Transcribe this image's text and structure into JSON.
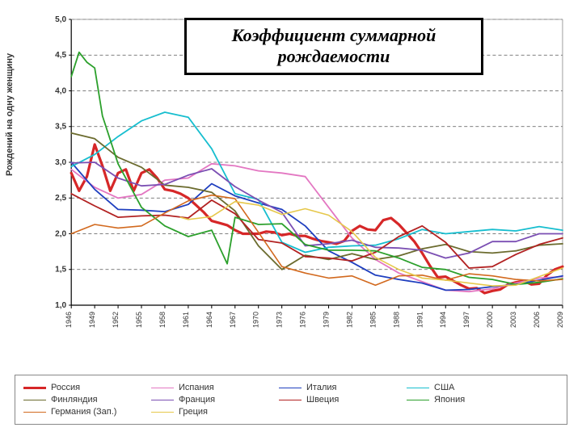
{
  "title": {
    "text": "Коэффициент суммарной рождаемости",
    "fontsize": 22
  },
  "y_axis": {
    "label": "Рождений на одну женщину",
    "min": 1.0,
    "max": 5.0,
    "ticks": [
      "1,0",
      "1,5",
      "2,0",
      "2,5",
      "3,0",
      "3,5",
      "4,0",
      "4,5",
      "5,0"
    ],
    "tick_values": [
      1.0,
      1.5,
      2.0,
      2.5,
      3.0,
      3.5,
      4.0,
      4.5,
      5.0
    ]
  },
  "x_axis": {
    "min": 1946,
    "max": 2009,
    "ticks": [
      1946,
      1949,
      1952,
      1955,
      1958,
      1961,
      1964,
      1967,
      1970,
      1973,
      1976,
      1979,
      1982,
      1985,
      1988,
      1991,
      1994,
      1997,
      2000,
      2003,
      2006,
      2009
    ]
  },
  "grid_color": "#555555",
  "background_color": "#ffffff",
  "axis_color": "#000000",
  "series": [
    {
      "name": "Россия",
      "label": "Россия",
      "color": "#d62728",
      "width": 3.2,
      "years": [
        1946,
        1947,
        1948,
        1949,
        1950,
        1951,
        1952,
        1953,
        1954,
        1955,
        1956,
        1957,
        1958,
        1959,
        1960,
        1961,
        1962,
        1963,
        1964,
        1965,
        1966,
        1967,
        1968,
        1969,
        1970,
        1971,
        1972,
        1973,
        1974,
        1975,
        1976,
        1977,
        1978,
        1979,
        1980,
        1981,
        1982,
        1983,
        1984,
        1985,
        1986,
        1987,
        1988,
        1989,
        1990,
        1991,
        1992,
        1993,
        1994,
        1995,
        1996,
        1997,
        1998,
        1999,
        2000,
        2001,
        2002,
        2003,
        2004,
        2005,
        2006,
        2007,
        2008,
        2009
      ],
      "values": [
        2.85,
        2.6,
        2.8,
        3.25,
        2.95,
        2.6,
        2.85,
        2.9,
        2.6,
        2.85,
        2.9,
        2.78,
        2.62,
        2.6,
        2.56,
        2.5,
        2.4,
        2.3,
        2.18,
        2.15,
        2.12,
        2.05,
        2.0,
        2.0,
        2.0,
        2.03,
        2.02,
        1.98,
        2.0,
        1.97,
        1.97,
        1.93,
        1.9,
        1.88,
        1.86,
        1.9,
        2.04,
        2.11,
        2.06,
        2.05,
        2.19,
        2.22,
        2.13,
        2.01,
        1.89,
        1.73,
        1.55,
        1.39,
        1.4,
        1.34,
        1.28,
        1.23,
        1.24,
        1.17,
        1.2,
        1.22,
        1.29,
        1.32,
        1.34,
        1.29,
        1.3,
        1.42,
        1.5,
        1.54
      ]
    },
    {
      "name": "Испания",
      "label": "Испания",
      "color": "#e377c2",
      "width": 1.8,
      "years": [
        1946,
        1949,
        1952,
        1955,
        1958,
        1961,
        1964,
        1967,
        1970,
        1973,
        1976,
        1979,
        1982,
        1985,
        1988,
        1991,
        1994,
        1997,
        2000,
        2003,
        2006,
        2009
      ],
      "values": [
        2.9,
        2.65,
        2.5,
        2.55,
        2.75,
        2.78,
        2.98,
        2.95,
        2.88,
        2.85,
        2.8,
        2.37,
        1.94,
        1.64,
        1.45,
        1.33,
        1.21,
        1.19,
        1.23,
        1.31,
        1.38,
        1.4
      ]
    },
    {
      "name": "Италия",
      "label": "Италия",
      "color": "#1f3fbf",
      "width": 1.8,
      "years": [
        1946,
        1949,
        1952,
        1955,
        1958,
        1961,
        1964,
        1967,
        1970,
        1973,
        1976,
        1979,
        1982,
        1985,
        1988,
        1991,
        1994,
        1997,
        2000,
        2003,
        2006,
        2009
      ],
      "values": [
        3.0,
        2.62,
        2.34,
        2.33,
        2.31,
        2.41,
        2.7,
        2.53,
        2.43,
        2.34,
        2.11,
        1.76,
        1.6,
        1.42,
        1.36,
        1.31,
        1.21,
        1.22,
        1.26,
        1.29,
        1.35,
        1.41
      ]
    },
    {
      "name": "США",
      "label": "США",
      "color": "#17becf",
      "width": 1.8,
      "years": [
        1946,
        1949,
        1952,
        1955,
        1958,
        1961,
        1964,
        1967,
        1970,
        1973,
        1976,
        1979,
        1982,
        1985,
        1988,
        1991,
        1994,
        1997,
        2000,
        2003,
        2006,
        2009
      ],
      "values": [
        2.94,
        3.11,
        3.36,
        3.58,
        3.7,
        3.63,
        3.19,
        2.56,
        2.48,
        1.88,
        1.74,
        1.81,
        1.83,
        1.84,
        1.93,
        2.06,
        2.0,
        2.03,
        2.06,
        2.04,
        2.1,
        2.05
      ]
    },
    {
      "name": "Финляндия",
      "label": "Финляндия",
      "color": "#6b6b2e",
      "width": 1.8,
      "years": [
        1946,
        1949,
        1952,
        1955,
        1958,
        1961,
        1964,
        1967,
        1970,
        1973,
        1976,
        1979,
        1982,
        1985,
        1988,
        1991,
        1994,
        1997,
        2000,
        2003,
        2006,
        2009
      ],
      "values": [
        3.41,
        3.33,
        3.07,
        2.93,
        2.68,
        2.65,
        2.58,
        2.32,
        1.83,
        1.5,
        1.7,
        1.64,
        1.72,
        1.64,
        1.69,
        1.79,
        1.85,
        1.75,
        1.73,
        1.76,
        1.84,
        1.86
      ]
    },
    {
      "name": "Франция",
      "label": "Франция",
      "color": "#7b4fb3",
      "width": 1.8,
      "years": [
        1946,
        1949,
        1952,
        1955,
        1958,
        1961,
        1964,
        1967,
        1970,
        1973,
        1976,
        1979,
        1982,
        1985,
        1988,
        1991,
        1994,
        1997,
        2000,
        2003,
        2006,
        2009
      ],
      "values": [
        2.99,
        3.0,
        2.78,
        2.67,
        2.69,
        2.82,
        2.91,
        2.66,
        2.47,
        2.3,
        1.83,
        1.86,
        1.91,
        1.81,
        1.8,
        1.77,
        1.66,
        1.73,
        1.89,
        1.89,
        2.0,
        2.0
      ]
    },
    {
      "name": "Швеция",
      "label": "Швеция",
      "color": "#b22222",
      "width": 1.8,
      "years": [
        1946,
        1949,
        1952,
        1955,
        1958,
        1961,
        1964,
        1967,
        1970,
        1973,
        1976,
        1979,
        1982,
        1985,
        1988,
        1991,
        1994,
        1997,
        2000,
        2003,
        2006,
        2009
      ],
      "values": [
        2.56,
        2.39,
        2.23,
        2.25,
        2.26,
        2.22,
        2.47,
        2.28,
        1.92,
        1.87,
        1.68,
        1.66,
        1.62,
        1.74,
        1.96,
        2.11,
        1.88,
        1.52,
        1.54,
        1.71,
        1.85,
        1.94
      ]
    },
    {
      "name": "Япония",
      "label": "Япония",
      "color": "#2ca02c",
      "width": 1.8,
      "years": [
        1946,
        1947,
        1948,
        1949,
        1950,
        1952,
        1955,
        1958,
        1961,
        1964,
        1966,
        1967,
        1970,
        1973,
        1976,
        1979,
        1982,
        1985,
        1988,
        1991,
        1994,
        1997,
        2000,
        2003,
        2006,
        2009
      ],
      "values": [
        4.2,
        4.54,
        4.4,
        4.32,
        3.65,
        2.98,
        2.37,
        2.11,
        1.96,
        2.05,
        1.58,
        2.23,
        2.13,
        2.14,
        1.85,
        1.77,
        1.77,
        1.76,
        1.66,
        1.53,
        1.5,
        1.39,
        1.36,
        1.29,
        1.32,
        1.37
      ]
    },
    {
      "name": "Германия (Зап.)",
      "label": "Германия (Зап.)",
      "color": "#d2691e",
      "width": 1.6,
      "years": [
        1946,
        1949,
        1952,
        1955,
        1958,
        1961,
        1964,
        1967,
        1970,
        1973,
        1976,
        1979,
        1982,
        1985,
        1988,
        1991,
        1994,
        1997,
        2000,
        2003,
        2006,
        2009
      ],
      "values": [
        2.0,
        2.13,
        2.08,
        2.11,
        2.29,
        2.46,
        2.54,
        2.49,
        2.02,
        1.54,
        1.45,
        1.38,
        1.41,
        1.28,
        1.41,
        1.42,
        1.35,
        1.44,
        1.41,
        1.36,
        1.34,
        1.36
      ]
    },
    {
      "name": "Греция",
      "label": "Греция",
      "color": "#e6c84b",
      "width": 1.6,
      "years": [
        1960,
        1961,
        1964,
        1967,
        1970,
        1973,
        1976,
        1979,
        1982,
        1985,
        1988,
        1991,
        1994,
        1997,
        2000,
        2003,
        2006,
        2009
      ],
      "values": [
        2.23,
        2.2,
        2.24,
        2.45,
        2.4,
        2.27,
        2.35,
        2.26,
        2.03,
        1.67,
        1.5,
        1.38,
        1.35,
        1.31,
        1.27,
        1.28,
        1.4,
        1.52
      ]
    }
  ],
  "legend_rows": [
    [
      "Россия",
      "Испания",
      "Италия",
      "США"
    ],
    [
      "Финляндия",
      "Франция",
      "Швеция",
      "Япония"
    ],
    [
      "Германия (Зап.)",
      "Греция"
    ]
  ]
}
